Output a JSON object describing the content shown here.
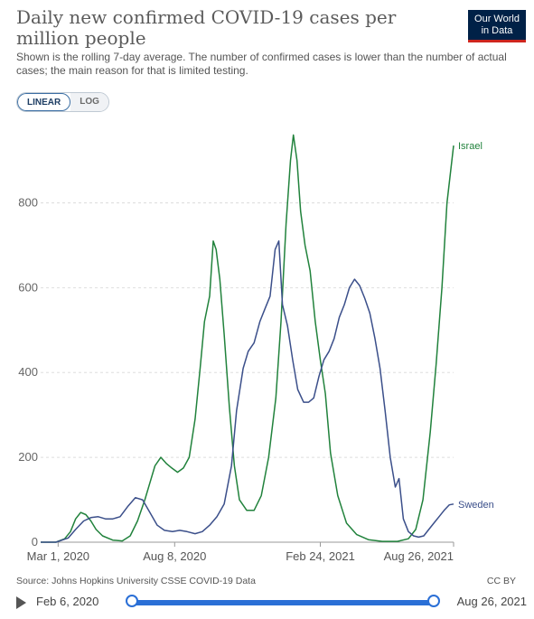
{
  "header": {
    "title": "Daily new confirmed COVID-19 cases per million people",
    "subtitle": "Shown is the rolling 7-day average. The number of confirmed cases is lower than the number of actual cases; the main reason for that is limited testing.",
    "logo_line1": "Our World",
    "logo_line2": "in Data",
    "logo_color": "#002147",
    "logo_accent": "#ce261e"
  },
  "scale_toggle": {
    "linear_label": "LINEAR",
    "log_label": "LOG",
    "selected": "LINEAR"
  },
  "footer": {
    "source": "Source: Johns Hopkins University CSSE COVID-19 Data",
    "license": "CC BY"
  },
  "timeline": {
    "start_label": "Feb 6, 2020",
    "end_label": "Aug 26, 2021"
  },
  "chart_data": {
    "type": "line",
    "title": "Daily new confirmed COVID-19 cases per million people",
    "xlabel": "",
    "ylabel": "",
    "ylim": [
      0,
      980
    ],
    "xlim": [
      "2020-02-06",
      "2021-08-26"
    ],
    "yticks": [
      0,
      200,
      400,
      600,
      800
    ],
    "xticks": [
      {
        "date": "2020-03-01",
        "label": "Mar 1, 2020"
      },
      {
        "date": "2020-08-08",
        "label": "Aug 8, 2020"
      },
      {
        "date": "2021-02-24",
        "label": "Feb 24, 2021"
      },
      {
        "date": "2021-08-26",
        "label": "Aug 26, 2021"
      }
    ],
    "grid": "horizontal-dashed",
    "legend": "inline-right",
    "series": [
      {
        "name": "Israel",
        "color": "#21823c",
        "points": [
          [
            "2020-02-06",
            0
          ],
          [
            "2020-02-27",
            0
          ],
          [
            "2020-03-10",
            8
          ],
          [
            "2020-03-18",
            25
          ],
          [
            "2020-03-25",
            55
          ],
          [
            "2020-04-01",
            70
          ],
          [
            "2020-04-08",
            65
          ],
          [
            "2020-04-15",
            50
          ],
          [
            "2020-04-22",
            30
          ],
          [
            "2020-05-01",
            15
          ],
          [
            "2020-05-15",
            5
          ],
          [
            "2020-05-28",
            3
          ],
          [
            "2020-06-08",
            15
          ],
          [
            "2020-06-18",
            50
          ],
          [
            "2020-06-28",
            100
          ],
          [
            "2020-07-05",
            140
          ],
          [
            "2020-07-12",
            180
          ],
          [
            "2020-07-20",
            200
          ],
          [
            "2020-07-28",
            185
          ],
          [
            "2020-08-04",
            175
          ],
          [
            "2020-08-12",
            165
          ],
          [
            "2020-08-20",
            175
          ],
          [
            "2020-08-28",
            200
          ],
          [
            "2020-09-05",
            290
          ],
          [
            "2020-09-12",
            410
          ],
          [
            "2020-09-18",
            520
          ],
          [
            "2020-09-25",
            580
          ],
          [
            "2020-09-30",
            710
          ],
          [
            "2020-10-04",
            690
          ],
          [
            "2020-10-09",
            620
          ],
          [
            "2020-10-15",
            490
          ],
          [
            "2020-10-22",
            320
          ],
          [
            "2020-10-29",
            180
          ],
          [
            "2020-11-05",
            100
          ],
          [
            "2020-11-15",
            75
          ],
          [
            "2020-11-25",
            75
          ],
          [
            "2020-12-05",
            110
          ],
          [
            "2020-12-15",
            200
          ],
          [
            "2020-12-25",
            340
          ],
          [
            "2021-01-01",
            520
          ],
          [
            "2021-01-08",
            750
          ],
          [
            "2021-01-14",
            900
          ],
          [
            "2021-01-18",
            960
          ],
          [
            "2021-01-23",
            900
          ],
          [
            "2021-01-28",
            780
          ],
          [
            "2021-02-03",
            700
          ],
          [
            "2021-02-10",
            640
          ],
          [
            "2021-02-17",
            520
          ],
          [
            "2021-02-24",
            430
          ],
          [
            "2021-03-03",
            350
          ],
          [
            "2021-03-10",
            210
          ],
          [
            "2021-03-20",
            110
          ],
          [
            "2021-04-01",
            45
          ],
          [
            "2021-04-15",
            18
          ],
          [
            "2021-05-01",
            6
          ],
          [
            "2021-05-20",
            2
          ],
          [
            "2021-06-10",
            2
          ],
          [
            "2021-06-25",
            8
          ],
          [
            "2021-07-05",
            30
          ],
          [
            "2021-07-15",
            100
          ],
          [
            "2021-07-25",
            260
          ],
          [
            "2021-08-02",
            420
          ],
          [
            "2021-08-10",
            600
          ],
          [
            "2021-08-17",
            800
          ],
          [
            "2021-08-26",
            935
          ]
        ]
      },
      {
        "name": "Sweden",
        "color": "#3b4f8a",
        "points": [
          [
            "2020-02-06",
            0
          ],
          [
            "2020-02-27",
            0
          ],
          [
            "2020-03-15",
            10
          ],
          [
            "2020-03-25",
            30
          ],
          [
            "2020-04-05",
            50
          ],
          [
            "2020-04-15",
            58
          ],
          [
            "2020-04-25",
            60
          ],
          [
            "2020-05-05",
            55
          ],
          [
            "2020-05-15",
            55
          ],
          [
            "2020-05-25",
            60
          ],
          [
            "2020-06-05",
            85
          ],
          [
            "2020-06-15",
            105
          ],
          [
            "2020-06-25",
            100
          ],
          [
            "2020-07-05",
            70
          ],
          [
            "2020-07-15",
            40
          ],
          [
            "2020-07-25",
            28
          ],
          [
            "2020-08-05",
            25
          ],
          [
            "2020-08-15",
            28
          ],
          [
            "2020-08-25",
            25
          ],
          [
            "2020-09-05",
            20
          ],
          [
            "2020-09-15",
            25
          ],
          [
            "2020-09-25",
            40
          ],
          [
            "2020-10-05",
            60
          ],
          [
            "2020-10-15",
            90
          ],
          [
            "2020-10-25",
            180
          ],
          [
            "2020-11-01",
            310
          ],
          [
            "2020-11-10",
            410
          ],
          [
            "2020-11-17",
            450
          ],
          [
            "2020-11-25",
            470
          ],
          [
            "2020-12-03",
            520
          ],
          [
            "2020-12-10",
            550
          ],
          [
            "2020-12-17",
            580
          ],
          [
            "2020-12-24",
            690
          ],
          [
            "2020-12-29",
            710
          ],
          [
            "2021-01-03",
            560
          ],
          [
            "2021-01-10",
            510
          ],
          [
            "2021-01-17",
            430
          ],
          [
            "2021-01-24",
            360
          ],
          [
            "2021-02-01",
            330
          ],
          [
            "2021-02-08",
            330
          ],
          [
            "2021-02-15",
            340
          ],
          [
            "2021-02-22",
            390
          ],
          [
            "2021-03-01",
            430
          ],
          [
            "2021-03-08",
            450
          ],
          [
            "2021-03-15",
            480
          ],
          [
            "2021-03-22",
            530
          ],
          [
            "2021-03-29",
            560
          ],
          [
            "2021-04-05",
            600
          ],
          [
            "2021-04-12",
            620
          ],
          [
            "2021-04-19",
            605
          ],
          [
            "2021-04-26",
            575
          ],
          [
            "2021-05-03",
            540
          ],
          [
            "2021-05-10",
            480
          ],
          [
            "2021-05-17",
            410
          ],
          [
            "2021-05-24",
            310
          ],
          [
            "2021-05-31",
            200
          ],
          [
            "2021-06-07",
            130
          ],
          [
            "2021-06-12",
            150
          ],
          [
            "2021-06-18",
            55
          ],
          [
            "2021-06-25",
            25
          ],
          [
            "2021-07-02",
            15
          ],
          [
            "2021-07-09",
            12
          ],
          [
            "2021-07-16",
            15
          ],
          [
            "2021-07-23",
            30
          ],
          [
            "2021-07-30",
            45
          ],
          [
            "2021-08-06",
            60
          ],
          [
            "2021-08-13",
            75
          ],
          [
            "2021-08-20",
            88
          ],
          [
            "2021-08-26",
            90
          ]
        ]
      }
    ]
  }
}
